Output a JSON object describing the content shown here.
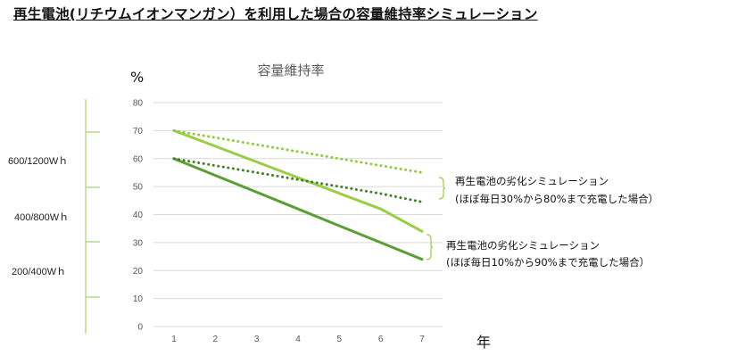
{
  "page": {
    "title": "再生電池(リチウムイオンマンガン）を利用した場合の容量維持率シミュレーション"
  },
  "left_scale": {
    "labels": [
      "600/1200Wｈ",
      "400/800Wｈ",
      "200/400Wｈ"
    ]
  },
  "annotations": [
    {
      "line1": "再生電池の劣化シミュレーション",
      "line2": "(ほぼ毎日30%から80%まで充電した場合）"
    },
    {
      "line1": "再生電池の劣化シミュレーション",
      "line2": "(ほぼ毎日10%から90%まで充電した場合）"
    }
  ],
  "colors": {
    "light_green": "#9ACD45",
    "dark_green": "#5B9E35",
    "dotted_light": "#92C83E",
    "dotted_dark": "#3E7F29",
    "grid": "#d9d9d9",
    "scale_line": "#a9cf6a"
  },
  "chart_data": {
    "type": "line",
    "title": "容量維持率",
    "ylabel": "%",
    "xlabel": "年",
    "categories": [
      "1",
      "2",
      "3",
      "4",
      "5",
      "6",
      "7"
    ],
    "ylim": [
      0,
      80
    ],
    "yticks": [
      0,
      10,
      20,
      30,
      40,
      50,
      60,
      70,
      80
    ],
    "grid": true,
    "series": [
      {
        "values": [
          70,
          64.4,
          58.8,
          53.2,
          47.6,
          42.0,
          34
        ],
        "style": "solid",
        "color": "#9ACD45"
      },
      {
        "values": [
          60,
          54.0,
          48.0,
          42.0,
          36.0,
          30.0,
          24
        ],
        "style": "solid",
        "color": "#5B9E35"
      },
      {
        "values": [
          70,
          67.5,
          65.0,
          62.5,
          60.0,
          57.5,
          55
        ],
        "style": "dotted",
        "color": "#92C83E"
      },
      {
        "values": [
          60,
          57.5,
          55.0,
          52.5,
          50.0,
          47.5,
          44.5
        ],
        "style": "dotted",
        "color": "#3E7F29"
      }
    ]
  }
}
